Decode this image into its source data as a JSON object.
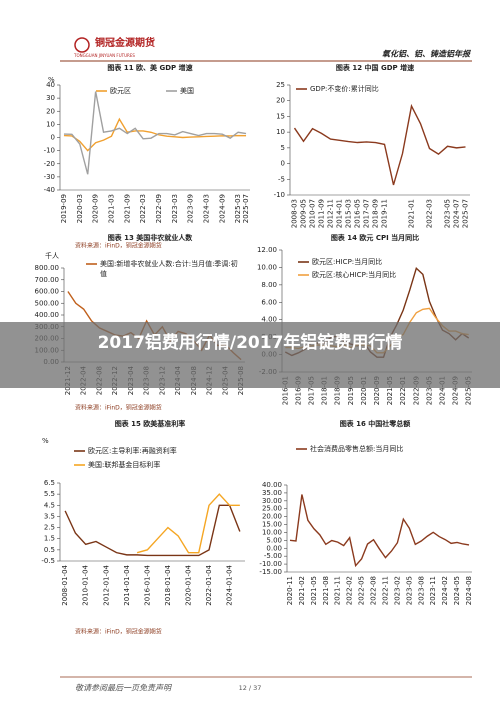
{
  "header": {
    "logo": "铜冠金源期货",
    "logo_en": "TONGGUAN JINYUAN FUTURES",
    "report": "氧化铝、铝、铸造铝年报"
  },
  "sources": [
    "资料来源：iFinD，铜冠金源期货",
    "资料来源：iFinD，铜冠金源期货",
    "资料来源：iFinD，铜冠金源期货"
  ],
  "overlay": "2017铝费用行情/2017年铝锭费用行情",
  "footer": {
    "disclaimer": "敬请参阅最后一页免责声明",
    "page": "12 / 37"
  },
  "chart_data": [
    {
      "type": "line",
      "title": "图表 11 欧、美 GDP 增速",
      "y_label": "%",
      "categories": [
        "2019-09",
        null,
        "2020-03",
        null,
        "2020-09",
        null,
        "2021-03",
        null,
        "2021-09",
        null,
        "2022-03",
        null,
        "2022-09",
        null,
        "2023-03",
        null,
        "2023-09",
        null,
        "2024-03",
        null,
        "2024-09",
        null,
        "2025-03",
        "2025-07"
      ],
      "series": [
        {
          "name": "欧元区",
          "color": "#f0a030",
          "values": [
            1.5,
            1.2,
            -3,
            -10,
            -4,
            -2,
            1,
            14,
            4,
            5,
            5,
            4,
            2,
            1,
            0.5,
            0,
            0.3,
            0.5,
            0.8,
            1,
            1.3,
            1.2,
            1.5,
            1.4
          ]
        },
        {
          "name": "美国",
          "color": "#a0a0a0",
          "values": [
            2.6,
            2.4,
            -5,
            -28,
            35,
            4,
            5,
            7,
            3,
            7,
            -1,
            -0.5,
            3,
            3,
            2,
            4.5,
            3,
            1.5,
            3,
            3,
            2.5,
            -0.5,
            4,
            3
          ]
        }
      ],
      "ylim": [
        -40,
        40
      ],
      "yticks": [
        -40,
        -30,
        -20,
        -10,
        0,
        10,
        20,
        30,
        40
      ]
    },
    {
      "type": "line",
      "title": "图表 12 中国 GDP 增速",
      "categories": [
        "2008-03",
        "2009-05",
        "2010-07",
        "2011-09",
        "2012-11",
        "2014-01",
        "2015-03",
        "2016-05",
        "2017-07",
        "2018-09",
        "2019-11",
        null,
        null,
        "2021-01",
        null,
        "2022-03",
        null,
        "2023-05",
        "2024-07",
        "2025-07"
      ],
      "series": [
        {
          "name": "GDP:不变价:累计同比",
          "color": "#8b3a1e",
          "values": [
            11.3,
            7.1,
            11.1,
            9.6,
            7.8,
            7.4,
            7.0,
            6.7,
            6.9,
            6.7,
            6.1,
            -6.8,
            3.2,
            18.3,
            12.7,
            4.8,
            3.0,
            5.5,
            5.0,
            5.3
          ]
        }
      ],
      "ylim": [
        -10,
        25
      ],
      "yticks": [
        -10,
        -5,
        0,
        5,
        10,
        15,
        20,
        25
      ]
    },
    {
      "type": "line",
      "title": "图表 13 美国非农就业人数",
      "y_label": "千人",
      "categories": [
        "2021-12",
        null,
        "2022-04",
        null,
        "2022-08",
        null,
        "2022-12",
        null,
        "2023-04",
        null,
        "2023-08",
        null,
        "2023-12",
        null,
        "2024-04",
        null,
        "2024-08",
        null,
        "2024-12",
        null,
        "2025-04",
        null,
        "2025-08"
      ],
      "series": [
        {
          "name": "美国:新增非农就业人数:合计:当月值:季调:初值",
          "color": "#c0601c",
          "values": [
            600,
            500,
            450,
            350,
            290,
            260,
            230,
            220,
            250,
            200,
            350,
            230,
            300,
            180,
            260,
            240,
            180,
            100,
            230,
            140,
            150,
            80,
            20
          ]
        }
      ],
      "ylim": [
        0,
        800
      ],
      "yticks": [
        {
          "value": 0,
          "label": "0.00"
        },
        {
          "value": 100,
          "label": "100.00"
        },
        {
          "value": 200,
          "label": "200.00"
        },
        {
          "value": 300,
          "label": "300.00"
        },
        {
          "value": 400,
          "label": "400.00"
        },
        {
          "value": 500,
          "label": "500.00"
        },
        {
          "value": 600,
          "label": "600.00"
        },
        {
          "value": 700,
          "label": "700.00"
        },
        {
          "value": 800,
          "label": "800.00"
        }
      ]
    },
    {
      "type": "line",
      "title": "图表 14 欧元 CPI 当月同比",
      "categories": [
        "2016-01",
        null,
        "2016-09",
        null,
        "2017-05",
        null,
        "2018-01",
        null,
        "2018-09",
        null,
        "2019-05",
        null,
        "2020-01",
        null,
        "2020-09",
        null,
        "2021-05",
        null,
        "2022-01",
        null,
        "2022-09",
        null,
        "2023-05",
        null,
        "2024-01",
        null,
        "2024-09",
        null,
        "2025-05"
      ],
      "series": [
        {
          "name": "欧元区:HICP:当月同比",
          "color": "#7a3516",
          "values": [
            0.3,
            -0.1,
            0.2,
            0.6,
            1.4,
            1.3,
            1.3,
            2.0,
            2.1,
            1.5,
            1.2,
            1.0,
            1.4,
            0.3,
            -0.3,
            -0.3,
            2.0,
            3.4,
            5.1,
            7.4,
            9.9,
            9.2,
            6.1,
            4.3,
            2.8,
            2.4,
            1.7,
            2.4,
            1.9
          ]
        },
        {
          "name": "欧元区:核心HICP:当月同比",
          "color": "#f0a040",
          "values": [
            0.8,
            0.8,
            0.7,
            0.9,
            1.0,
            1.1,
            1.0,
            1.0,
            0.9,
            1.1,
            0.8,
            1.1,
            1.1,
            1.0,
            0.2,
            0.2,
            1.0,
            1.9,
            2.3,
            3.7,
            4.8,
            5.2,
            5.3,
            4.2,
            3.3,
            2.7,
            2.7,
            2.4,
            2.3
          ]
        }
      ],
      "ylim": [
        -2,
        12
      ],
      "yticks": [
        {
          "value": -2,
          "label": "-2.00"
        },
        {
          "value": 0,
          "label": "0.00"
        },
        {
          "value": 2,
          "label": "2.00"
        },
        {
          "value": 4,
          "label": "4.00"
        },
        {
          "value": 6,
          "label": "6.00"
        },
        {
          "value": 8,
          "label": "8.00"
        },
        {
          "value": 10,
          "label": "10.00"
        },
        {
          "value": 12,
          "label": "12.00"
        }
      ]
    },
    {
      "type": "line",
      "title": "图表 15 欧美基准利率",
      "y_label": "%",
      "categories": [
        "2008-01-04",
        null,
        "2010-01-04",
        null,
        "2012-01-04",
        null,
        "2014-01-04",
        null,
        "2016-01-04",
        null,
        "2018-01-04",
        null,
        "2020-01-04",
        null,
        "2022-01-04",
        null,
        "2024-01-04",
        null
      ],
      "series": [
        {
          "name": "欧元区:主导利率:再融资利率",
          "color": "#7a3516",
          "values": [
            4,
            2,
            1,
            1.25,
            0.75,
            0.25,
            0.05,
            0.05,
            0,
            0,
            0,
            0,
            0,
            0,
            0.5,
            4.5,
            4.5,
            2.15
          ]
        },
        {
          "name": "美国:联邦基金目标利率",
          "color": "#f5a623",
          "values": [
            null,
            null,
            null,
            null,
            null,
            null,
            null,
            0.25,
            0.5,
            1.5,
            2.5,
            1.75,
            0.25,
            0.25,
            4.5,
            5.5,
            4.5,
            4.5
          ]
        }
      ],
      "ylim": [
        -0.5,
        6.5
      ],
      "yticks": [
        -0.5,
        0.5,
        1.5,
        2.5,
        3.5,
        4.5,
        5.5,
        6.5
      ]
    },
    {
      "type": "line",
      "title": "图表 16 中国社零总额",
      "categories": [
        "2020-11",
        null,
        "2021-02",
        null,
        "2021-05",
        null,
        "2021-08",
        null,
        "2021-11",
        null,
        "2022-02",
        null,
        "2022-05",
        null,
        "2022-08",
        null,
        "2022-11",
        null,
        "2023-02",
        null,
        "2023-05",
        null,
        "2023-08",
        null,
        "2023-11",
        null,
        "2024-02",
        null,
        "2024-05",
        null,
        "2024-08"
      ],
      "series": [
        {
          "name": "社会消费品零售总额:当月同比",
          "color": "#8b3a1e",
          "values": [
            5,
            4.6,
            34,
            17.7,
            12.4,
            8.5,
            2.5,
            4.9,
            3.9,
            1.7,
            6.7,
            -11,
            -6.7,
            2.7,
            5.4,
            -0.5,
            -5.9,
            -1.8,
            3.5,
            18.4,
            12.7,
            2.5,
            4.6,
            7.6,
            10.1,
            7.4,
            5.5,
            3.1,
            3.7,
            2.7,
            2.1
          ]
        }
      ],
      "ylim": [
        -15,
        40
      ],
      "yticks": [
        {
          "value": -15,
          "label": "-15.00"
        },
        {
          "value": -10,
          "label": "-10.00"
        },
        {
          "value": -5,
          "label": "-5.00"
        },
        {
          "value": 0,
          "label": "0.00"
        },
        {
          "value": 5,
          "label": "5.00"
        },
        {
          "value": 10,
          "label": "10.00"
        },
        {
          "value": 15,
          "label": "15.00"
        },
        {
          "value": 20,
          "label": "20.00"
        },
        {
          "value": 25,
          "label": "25.00"
        },
        {
          "value": 30,
          "label": "30.00"
        },
        {
          "value": 35,
          "label": "35.00"
        },
        {
          "value": 40,
          "label": "40.00"
        }
      ]
    }
  ]
}
